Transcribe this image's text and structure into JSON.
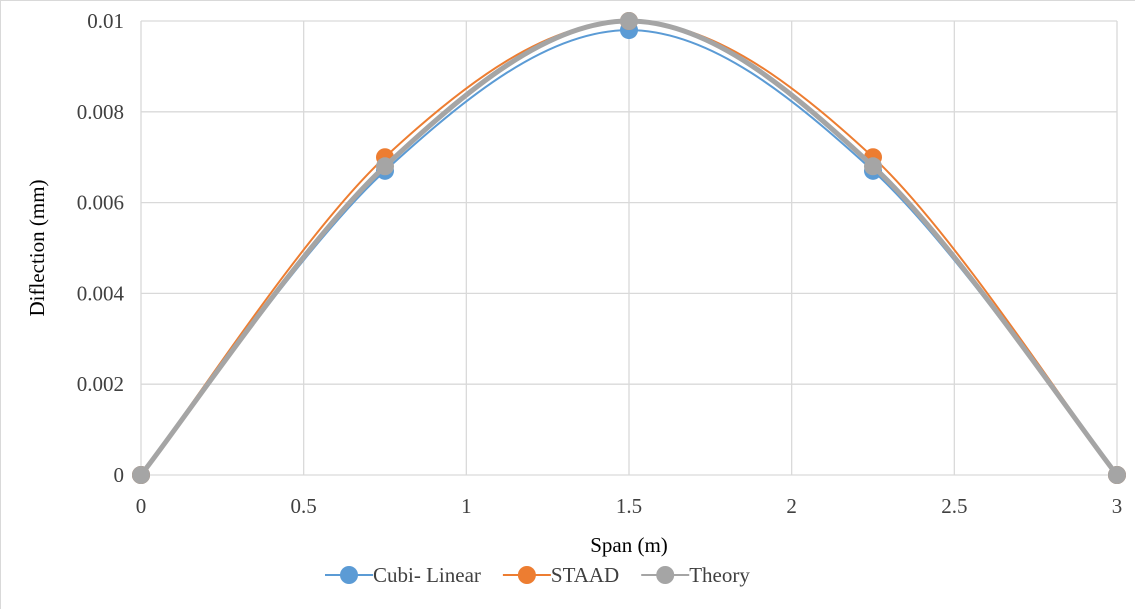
{
  "chart_data": {
    "type": "line",
    "title": "",
    "xlabel": "Span (m)",
    "ylabel": "Diflection (mm)",
    "xlim": [
      0,
      3
    ],
    "ylim": [
      0,
      0.01
    ],
    "xticks": [
      "0",
      "0.5",
      "1",
      "1.5",
      "2",
      "2.5",
      "3"
    ],
    "yticks": [
      "0",
      "0.002",
      "0.004",
      "0.006",
      "0.008",
      "0.01"
    ],
    "grid": true,
    "smooth": true,
    "legend": "bottom",
    "x": [
      0,
      0.75,
      1.5,
      2.25,
      3
    ],
    "series": [
      {
        "name": "Cubi- Linear",
        "color": "#5b9bd5",
        "values": [
          0,
          0.0067,
          0.0098,
          0.0067,
          0
        ]
      },
      {
        "name": "STAAD",
        "color": "#ed7d31",
        "values": [
          0,
          0.007,
          0.01,
          0.007,
          0
        ]
      },
      {
        "name": "Theory",
        "color": "#a5a5a5",
        "values": [
          0,
          0.0068,
          0.01,
          0.0068,
          0
        ]
      }
    ]
  }
}
